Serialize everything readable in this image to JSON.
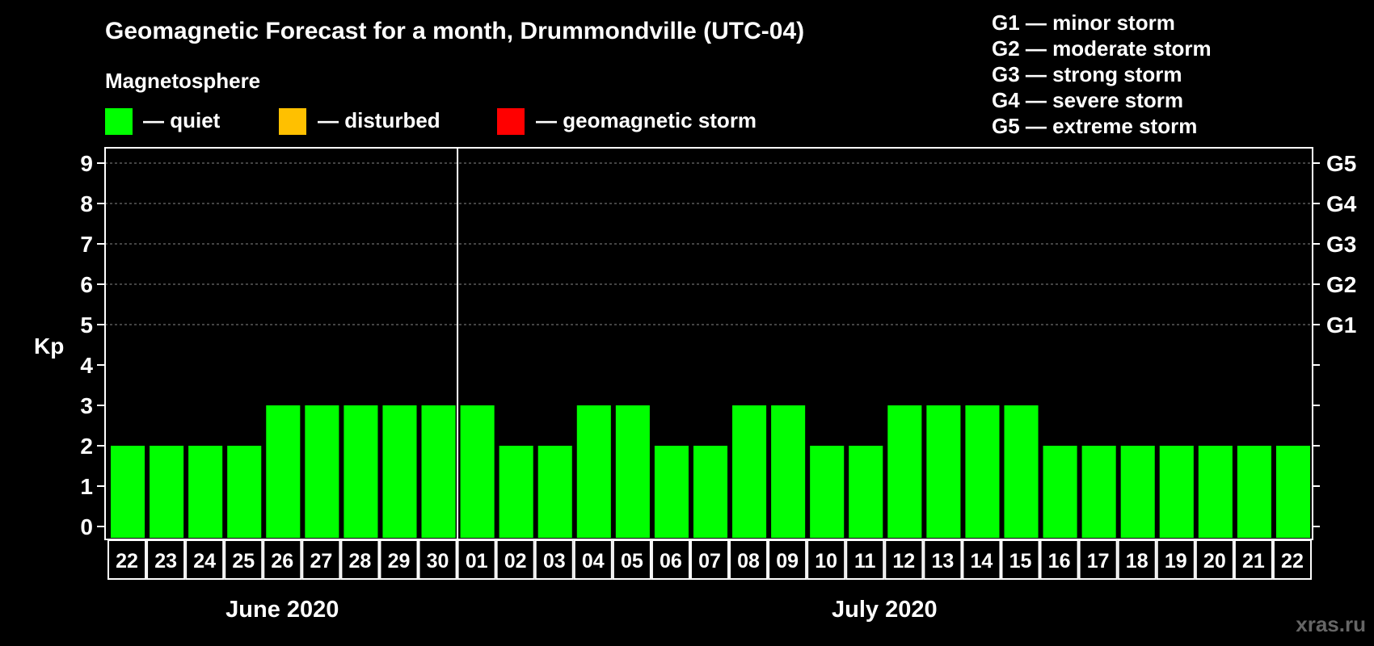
{
  "title": "Geomagnetic Forecast for a month, Drummondville (UTC-04)",
  "legend": {
    "heading": "Magnetosphere",
    "items": [
      {
        "label": "— quiet",
        "color": "#00ff00"
      },
      {
        "label": "— disturbed",
        "color": "#ffc000"
      },
      {
        "label": "— geomagnetic storm",
        "color": "#ff0000"
      }
    ]
  },
  "storm_scale": [
    "G1 — minor storm",
    "G2 — moderate storm",
    "G3 — strong storm",
    "G4 — severe storm",
    "G5 — extreme storm"
  ],
  "watermark": "xras.ru",
  "chart_data": {
    "type": "bar",
    "title": "Geomagnetic Forecast for a month, Drummondville (UTC-04)",
    "ylabel": "Kp",
    "ylim": [
      0,
      9
    ],
    "yticks": [
      0,
      1,
      2,
      3,
      4,
      5,
      6,
      7,
      8,
      9
    ],
    "right_ticks": [
      {
        "value": 5,
        "label": "G1"
      },
      {
        "value": 6,
        "label": "G2"
      },
      {
        "value": 7,
        "label": "G3"
      },
      {
        "value": 8,
        "label": "G4"
      },
      {
        "value": 9,
        "label": "G5"
      }
    ],
    "grid": true,
    "bar_color": "#00ff00",
    "categories": [
      "22",
      "23",
      "24",
      "25",
      "26",
      "27",
      "28",
      "29",
      "30",
      "01",
      "02",
      "03",
      "04",
      "05",
      "06",
      "07",
      "08",
      "09",
      "10",
      "11",
      "12",
      "13",
      "14",
      "15",
      "16",
      "17",
      "18",
      "19",
      "20",
      "21",
      "22"
    ],
    "values": [
      2,
      2,
      2,
      2,
      3,
      3,
      3,
      3,
      3,
      3,
      2,
      2,
      3,
      3,
      2,
      2,
      3,
      3,
      2,
      2,
      3,
      3,
      3,
      3,
      2,
      2,
      2,
      2,
      2,
      2,
      2
    ],
    "months": [
      {
        "label": "June 2020",
        "start": 0,
        "count": 9
      },
      {
        "label": "July 2020",
        "start": 9,
        "count": 22
      }
    ]
  }
}
